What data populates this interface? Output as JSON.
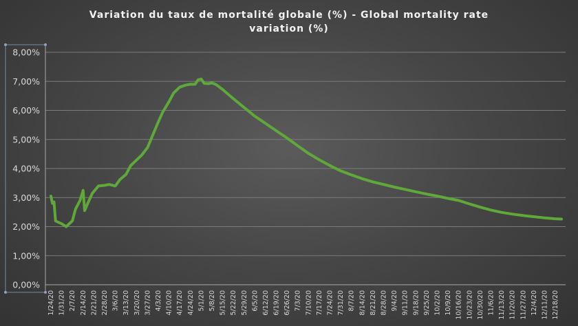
{
  "chart_data": {
    "type": "line",
    "title_lines": [
      "Variation du taux de mortalité globale (%) -  Global  mortality rate",
      "variation (%)"
    ],
    "xlabel": "",
    "ylabel": "",
    "ylim": [
      0,
      8
    ],
    "y_ticks": [
      "0,00%",
      "1,00%",
      "2,00%",
      "3,00%",
      "4,00%",
      "5,00%",
      "6,00%",
      "7,00%",
      "8,00%"
    ],
    "x_tick_labels": [
      "1/24/20",
      "1/31/20",
      "2/7/20",
      "2/14/20",
      "2/21/20",
      "2/28/20",
      "3/6/20",
      "3/13/20",
      "3/20/20",
      "3/27/20",
      "4/3/20",
      "4/10/20",
      "4/17/20",
      "4/24/20",
      "5/1/20",
      "5/8/20",
      "5/15/20",
      "5/22/20",
      "5/29/20",
      "6/5/20",
      "6/12/20",
      "6/19/20",
      "6/26/20",
      "7/3/20",
      "7/10/20",
      "7/17/20",
      "7/24/20",
      "7/31/20",
      "8/7/20",
      "8/14/20",
      "8/21/20",
      "8/28/20",
      "9/4/20",
      "9/11/20",
      "9/18/20",
      "9/25/20",
      "10/2/20",
      "10/9/20",
      "10/16/20",
      "10/23/20",
      "10/30/20",
      "11/6/20",
      "11/13/20",
      "11/20/20",
      "11/27/20",
      "12/4/20",
      "12/11/20",
      "12/18/20"
    ],
    "grid": true,
    "legend": "none",
    "line_color": "#5fa83a",
    "series": [
      {
        "x": [
          "1/24/20",
          "1/25/20",
          "1/26/20",
          "1/27/20",
          "1/28/20",
          "1/31/20",
          "2/3/20",
          "2/7/20",
          "2/9/20",
          "2/12/20",
          "2/14/20",
          "2/15/20",
          "2/17/20",
          "2/20/20",
          "2/24/20",
          "2/28/20",
          "3/2/20",
          "3/6/20",
          "3/9/20",
          "3/13/20",
          "3/16/20",
          "3/20/20",
          "3/23/20",
          "3/27/20",
          "3/30/20",
          "4/3/20",
          "4/6/20",
          "4/10/20",
          "4/13/20",
          "4/17/20",
          "4/21/20",
          "4/24/20",
          "4/27/20",
          "4/29/20",
          "5/1/20",
          "5/3/20",
          "5/6/20",
          "5/8/20",
          "5/11/20",
          "5/15/20",
          "5/22/20",
          "5/29/20",
          "6/5/20",
          "6/12/20",
          "6/19/20",
          "6/26/20",
          "7/3/20",
          "7/10/20",
          "7/17/20",
          "7/24/20",
          "7/31/20",
          "8/7/20",
          "8/14/20",
          "8/21/20",
          "8/28/20",
          "9/4/20",
          "9/11/20",
          "9/18/20",
          "9/25/20",
          "10/2/20",
          "10/9/20",
          "10/16/20",
          "10/23/20",
          "10/30/20",
          "11/6/20",
          "11/13/20",
          "11/20/20",
          "11/27/20",
          "12/4/20",
          "12/11/20",
          "12/18/20",
          "12/22/20"
        ],
        "values": [
          3.05,
          2.8,
          2.85,
          2.2,
          2.17,
          2.1,
          2.0,
          2.2,
          2.6,
          2.9,
          3.25,
          2.55,
          2.8,
          3.15,
          3.4,
          3.42,
          3.45,
          3.4,
          3.62,
          3.8,
          4.1,
          4.3,
          4.45,
          4.72,
          5.1,
          5.6,
          5.95,
          6.3,
          6.6,
          6.8,
          6.87,
          6.9,
          6.9,
          7.05,
          7.08,
          6.93,
          6.92,
          6.95,
          6.88,
          6.72,
          6.4,
          6.1,
          5.8,
          5.55,
          5.3,
          5.05,
          4.78,
          4.52,
          4.3,
          4.1,
          3.92,
          3.78,
          3.65,
          3.54,
          3.45,
          3.36,
          3.28,
          3.2,
          3.12,
          3.05,
          2.97,
          2.9,
          2.78,
          2.67,
          2.57,
          2.49,
          2.43,
          2.38,
          2.34,
          2.3,
          2.27,
          2.26
        ]
      }
    ]
  }
}
